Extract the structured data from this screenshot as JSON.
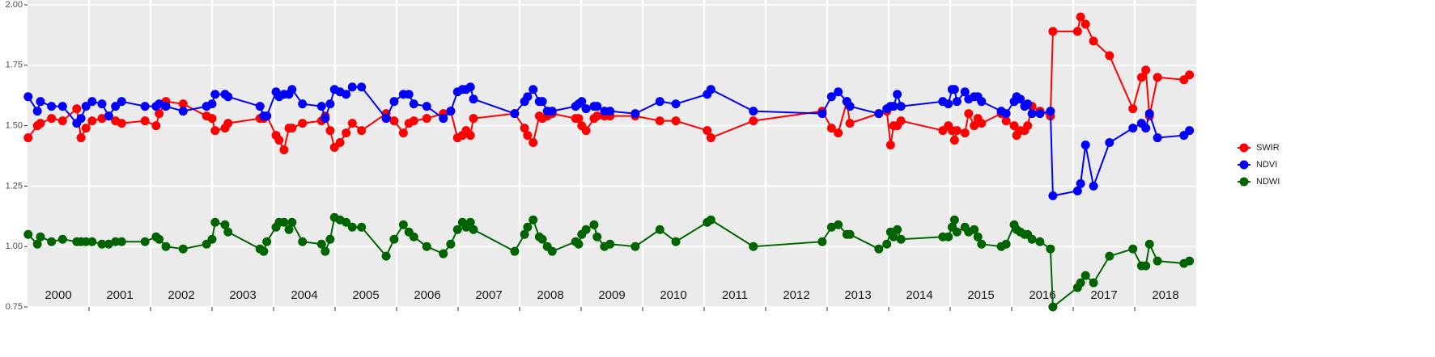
{
  "chart_data": {
    "type": "line",
    "x": [
      2000.01,
      2000.16,
      2000.21,
      2000.39,
      2000.57,
      2000.8,
      2000.87,
      2000.95,
      2001.05,
      2001.21,
      2001.32,
      2001.43,
      2001.53,
      2001.91,
      2002.09,
      2002.14,
      2002.25,
      2002.53,
      2002.91,
      2003.0,
      2003.05,
      2003.21,
      2003.26,
      2003.78,
      2003.84,
      2003.89,
      2004.04,
      2004.09,
      2004.17,
      2004.25,
      2004.3,
      2004.47,
      2004.78,
      2004.84,
      2004.92,
      2004.99,
      2005.08,
      2005.18,
      2005.28,
      2005.43,
      2005.83,
      2005.96,
      2006.11,
      2006.2,
      2006.28,
      2006.49,
      2006.76,
      2006.88,
      2006.99,
      2007.07,
      2007.13,
      2007.2,
      2007.25,
      2007.92,
      2008.08,
      2008.13,
      2008.22,
      2008.32,
      2008.37,
      2008.45,
      2008.53,
      2008.91,
      2008.96,
      2009.01,
      2009.08,
      2009.21,
      2009.26,
      2009.38,
      2009.47,
      2009.88,
      2010.28,
      2010.54,
      2011.05,
      2011.11,
      2011.8,
      2012.92,
      2013.07,
      2013.18,
      2013.32,
      2013.37,
      2013.84,
      2013.97,
      2014.03,
      2014.08,
      2014.14,
      2014.2,
      2014.88,
      2014.97,
      2015.03,
      2015.07,
      2015.11,
      2015.24,
      2015.3,
      2015.39,
      2015.45,
      2015.51,
      2015.83,
      2015.91,
      2016.04,
      2016.08,
      2016.14,
      2016.21,
      2016.26,
      2016.33,
      2016.46,
      2016.63,
      2016.67,
      2017.07,
      2017.12,
      2017.2,
      2017.33,
      2017.59,
      2017.97,
      2018.11,
      2018.18,
      2018.24,
      2018.37,
      2018.8,
      2018.89
    ],
    "series": [
      {
        "name": "SWIR",
        "color": "#ff0000",
        "values": [
          1.45,
          1.5,
          1.51,
          1.53,
          1.52,
          1.57,
          1.45,
          1.49,
          1.52,
          1.53,
          1.54,
          1.52,
          1.51,
          1.52,
          1.5,
          1.55,
          1.6,
          1.59,
          1.54,
          1.53,
          1.48,
          1.49,
          1.51,
          1.53,
          1.53,
          1.54,
          1.46,
          1.44,
          1.4,
          1.49,
          1.49,
          1.51,
          1.52,
          1.54,
          1.48,
          1.41,
          1.43,
          1.47,
          1.51,
          1.48,
          1.55,
          1.52,
          1.47,
          1.51,
          1.52,
          1.53,
          1.55,
          1.56,
          1.45,
          1.46,
          1.48,
          1.46,
          1.53,
          1.55,
          1.49,
          1.46,
          1.43,
          1.54,
          1.53,
          1.54,
          1.55,
          1.53,
          1.53,
          1.5,
          1.48,
          1.53,
          1.54,
          1.54,
          1.54,
          1.54,
          1.52,
          1.52,
          1.48,
          1.45,
          1.52,
          1.56,
          1.49,
          1.47,
          1.6,
          1.51,
          1.55,
          1.56,
          1.42,
          1.5,
          1.5,
          1.52,
          1.48,
          1.5,
          1.48,
          1.44,
          1.48,
          1.47,
          1.55,
          1.5,
          1.53,
          1.51,
          1.55,
          1.52,
          1.5,
          1.46,
          1.48,
          1.48,
          1.5,
          1.58,
          1.56,
          1.54,
          1.89,
          1.89,
          1.95,
          1.92,
          1.85,
          1.79,
          1.57,
          1.7,
          1.73,
          1.54,
          1.7,
          1.69,
          1.71
        ]
      },
      {
        "name": "NDVI",
        "color": "#0000ff",
        "values": [
          1.62,
          1.56,
          1.6,
          1.58,
          1.58,
          1.51,
          1.53,
          1.58,
          1.6,
          1.59,
          1.54,
          1.58,
          1.6,
          1.58,
          1.58,
          1.59,
          1.58,
          1.56,
          1.58,
          1.59,
          1.63,
          1.63,
          1.62,
          1.58,
          1.54,
          1.54,
          1.64,
          1.62,
          1.63,
          1.63,
          1.65,
          1.59,
          1.58,
          1.53,
          1.59,
          1.65,
          1.64,
          1.63,
          1.66,
          1.66,
          1.53,
          1.6,
          1.63,
          1.63,
          1.59,
          1.58,
          1.53,
          1.56,
          1.64,
          1.65,
          1.65,
          1.66,
          1.61,
          1.55,
          1.6,
          1.62,
          1.65,
          1.6,
          1.6,
          1.56,
          1.56,
          1.58,
          1.59,
          1.6,
          1.57,
          1.58,
          1.58,
          1.56,
          1.56,
          1.55,
          1.6,
          1.59,
          1.63,
          1.65,
          1.56,
          1.55,
          1.62,
          1.64,
          1.6,
          1.58,
          1.55,
          1.57,
          1.58,
          1.58,
          1.63,
          1.58,
          1.6,
          1.59,
          1.65,
          1.65,
          1.6,
          1.64,
          1.61,
          1.62,
          1.62,
          1.6,
          1.56,
          1.55,
          1.6,
          1.62,
          1.61,
          1.58,
          1.59,
          1.55,
          1.55,
          1.56,
          1.21,
          1.23,
          1.26,
          1.42,
          1.25,
          1.43,
          1.49,
          1.51,
          1.49,
          1.55,
          1.45,
          1.46,
          1.48
        ]
      },
      {
        "name": "NDWI",
        "color": "#006400",
        "values": [
          1.05,
          1.01,
          1.04,
          1.02,
          1.03,
          1.02,
          1.02,
          1.02,
          1.02,
          1.01,
          1.01,
          1.02,
          1.02,
          1.02,
          1.04,
          1.03,
          1.0,
          0.99,
          1.01,
          1.03,
          1.1,
          1.09,
          1.06,
          0.99,
          0.98,
          1.02,
          1.08,
          1.1,
          1.1,
          1.07,
          1.1,
          1.02,
          1.01,
          0.98,
          1.03,
          1.12,
          1.11,
          1.1,
          1.08,
          1.08,
          0.96,
          1.03,
          1.09,
          1.06,
          1.04,
          1.0,
          0.97,
          1.01,
          1.07,
          1.1,
          1.08,
          1.1,
          1.07,
          0.98,
          1.05,
          1.08,
          1.11,
          1.04,
          1.03,
          1.0,
          0.98,
          1.02,
          1.01,
          1.05,
          1.07,
          1.09,
          1.04,
          1.0,
          1.01,
          1.0,
          1.07,
          1.02,
          1.1,
          1.11,
          1.0,
          1.02,
          1.08,
          1.09,
          1.05,
          1.05,
          0.99,
          1.01,
          1.06,
          1.04,
          1.07,
          1.03,
          1.04,
          1.04,
          1.08,
          1.11,
          1.06,
          1.08,
          1.06,
          1.07,
          1.04,
          1.01,
          1.0,
          1.01,
          1.09,
          1.07,
          1.06,
          1.05,
          1.05,
          1.03,
          1.02,
          0.99,
          0.75,
          0.83,
          0.85,
          0.88,
          0.85,
          0.96,
          0.99,
          0.92,
          0.92,
          1.01,
          0.94,
          0.93,
          0.94
        ]
      }
    ],
    "xlim": [
      2000,
      2019
    ],
    "xticks": [
      {
        "value": 2000.5,
        "label": "2000"
      },
      {
        "value": 2001.5,
        "label": "2001"
      },
      {
        "value": 2002.5,
        "label": "2002"
      },
      {
        "value": 2003.5,
        "label": "2003"
      },
      {
        "value": 2004.5,
        "label": "2004"
      },
      {
        "value": 2005.5,
        "label": "2005"
      },
      {
        "value": 2006.5,
        "label": "2006"
      },
      {
        "value": 2007.5,
        "label": "2007"
      },
      {
        "value": 2008.5,
        "label": "2008"
      },
      {
        "value": 2009.5,
        "label": "2009"
      },
      {
        "value": 2010.5,
        "label": "2010"
      },
      {
        "value": 2011.5,
        "label": "2011"
      },
      {
        "value": 2012.5,
        "label": "2012"
      },
      {
        "value": 2013.5,
        "label": "2013"
      },
      {
        "value": 2014.5,
        "label": "2014"
      },
      {
        "value": 2015.5,
        "label": "2015"
      },
      {
        "value": 2016.5,
        "label": "2016"
      },
      {
        "value": 2017.5,
        "label": "2017"
      },
      {
        "value": 2018.5,
        "label": "2018"
      }
    ],
    "xgrid": [
      2001,
      2002,
      2003,
      2004,
      2005,
      2006,
      2007,
      2008,
      2009,
      2010,
      2011,
      2012,
      2013,
      2014,
      2015,
      2016,
      2017,
      2018
    ],
    "ylim": [
      0.75,
      2.0
    ],
    "yticks": [
      0.75,
      {
        "value": 1.0,
        "label": "1.00"
      },
      1.25,
      {
        "value": 1.5,
        "label": "1.50"
      },
      1.75,
      {
        "value": 2.0,
        "label": "2.00"
      }
    ],
    "grid": true,
    "legend": "right"
  }
}
